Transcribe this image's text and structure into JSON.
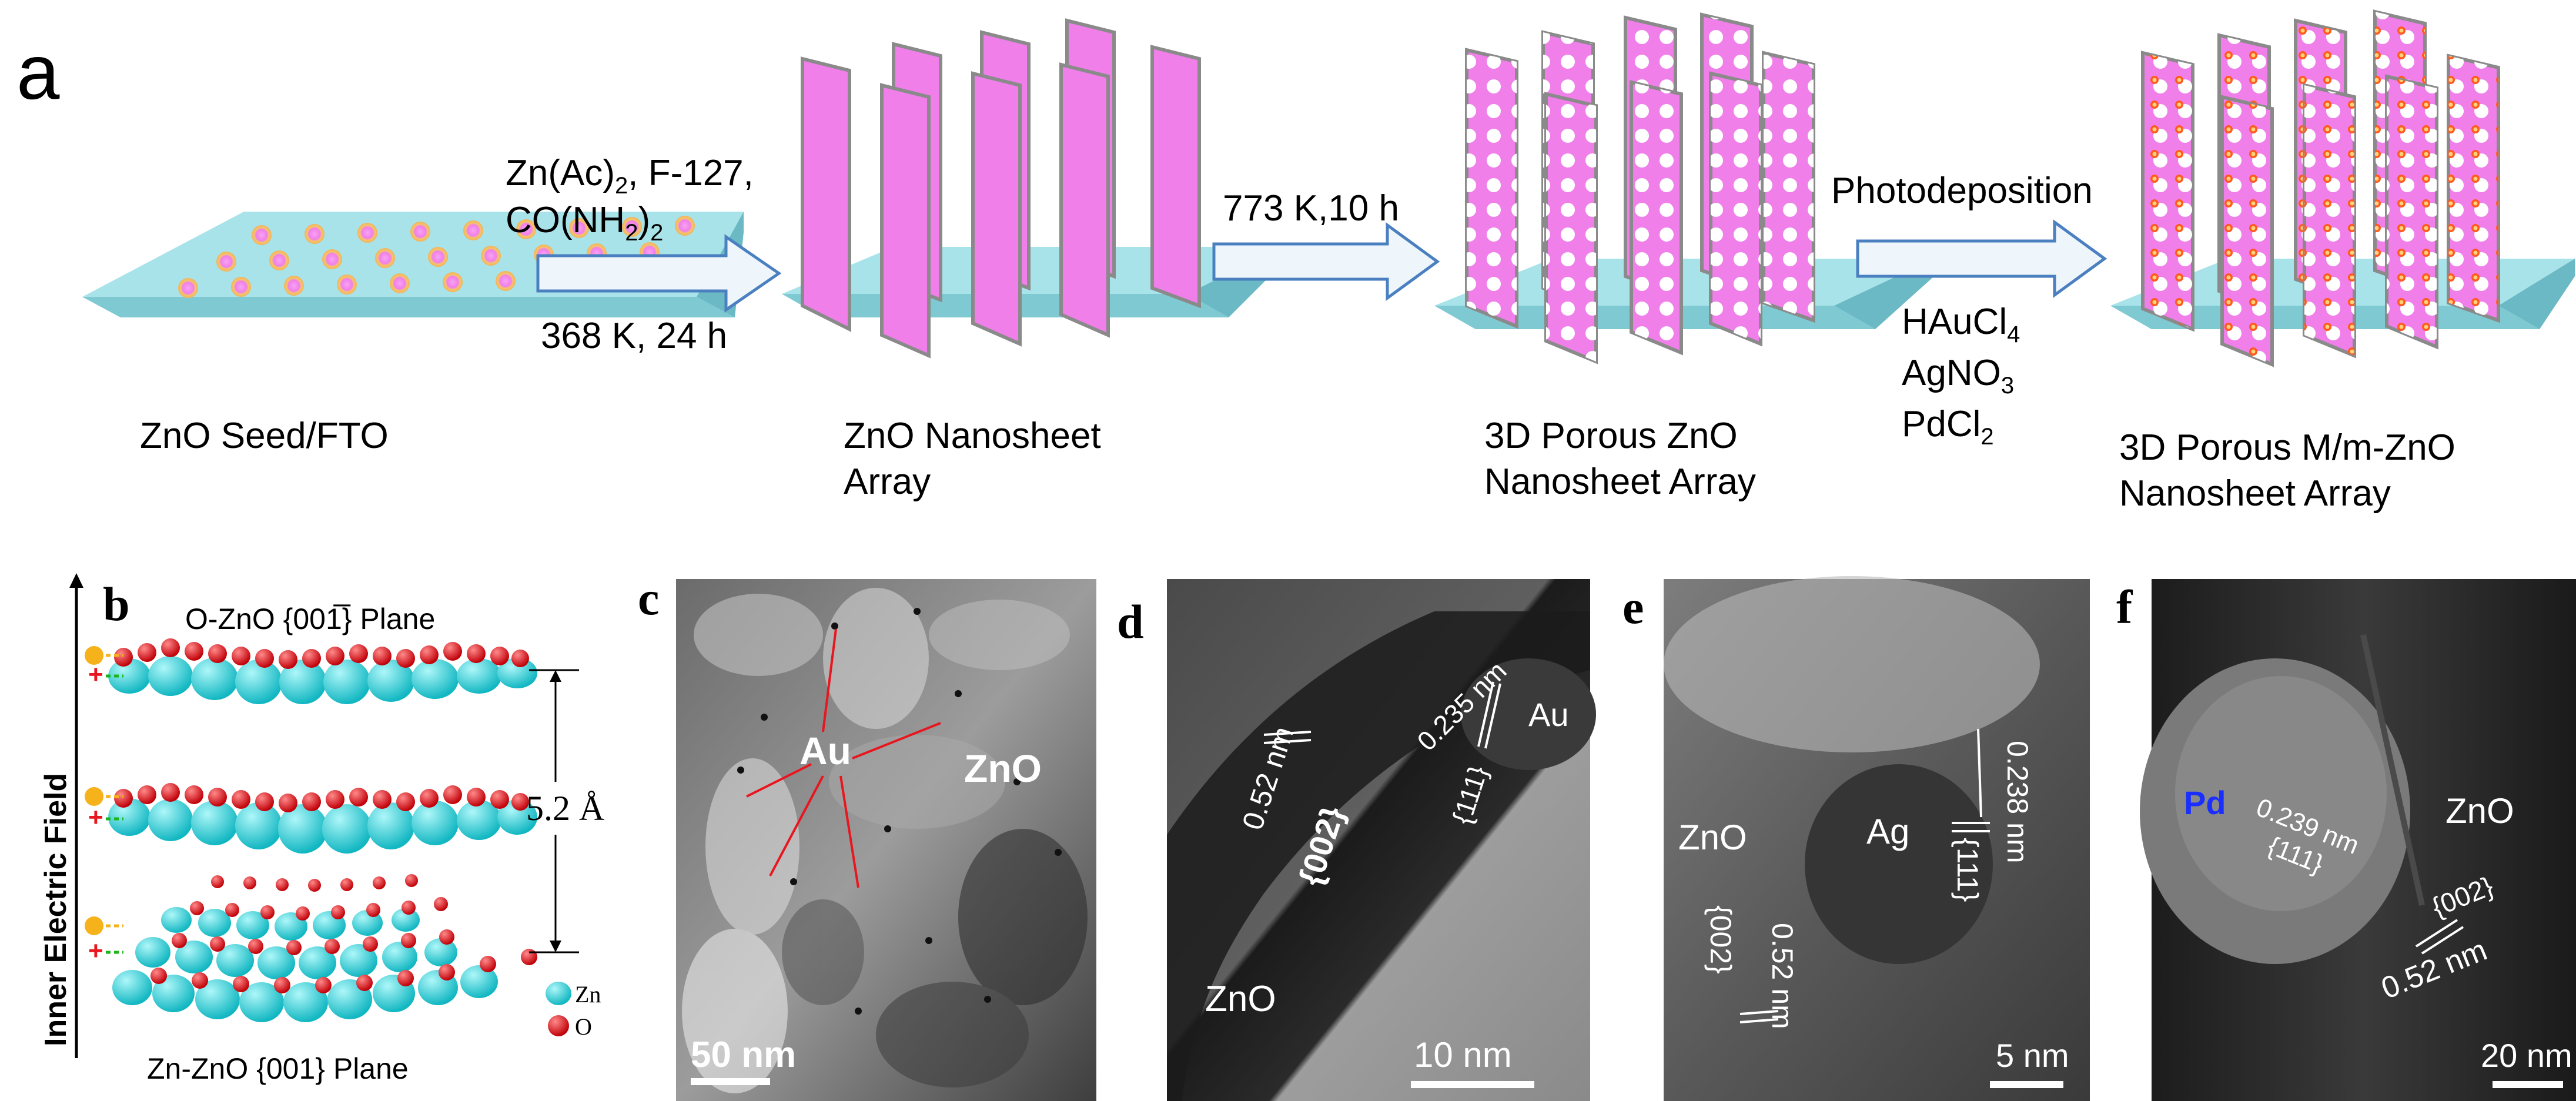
{
  "panel_a": {
    "letter": "a",
    "steps": [
      {
        "caption_1": "ZnO Seed/FTO",
        "caption_2": ""
      },
      {
        "caption_1": "ZnO Nanosheet",
        "caption_2": "Array"
      },
      {
        "caption_1": "3D Porous ZnO",
        "caption_2": "Nanosheet Array"
      },
      {
        "caption_1": "3D Porous M/m-ZnO",
        "caption_2": "Nanosheet Array"
      }
    ],
    "arrow_1": {
      "line_1": "Zn(Ac)",
      "sub_1": "2",
      "line_1b": ", F-127,",
      "line_2": "CO(NH",
      "sub_2": "2",
      "line_2b": ")",
      "sub_2b": "2",
      "below": "368 K, 24 h"
    },
    "arrow_2": {
      "above": "773 K,10 h"
    },
    "arrow_3": {
      "above": "Photodeposition",
      "reagent_1": "HAuCl",
      "reagent_1_sub": "4",
      "reagent_2": "AgNO",
      "reagent_2_sub": "3",
      "reagent_3": "PdCl",
      "reagent_3_sub": "2"
    }
  },
  "panel_b": {
    "letter": "b",
    "top_label": "O-ZnO {001̅} Plane",
    "bottom_label": "Zn-ZnO {001} Plane",
    "axis_label": "Inner Electric Field",
    "spacing": "5.2 Å",
    "legend_zn": "Zn",
    "legend_o": "O",
    "minus": "−",
    "plus": "+"
  },
  "panel_c": {
    "letter": "c",
    "label_au": "Au",
    "label_zno": "ZnO",
    "scale": "50 nm"
  },
  "panel_d": {
    "letter": "d",
    "d_spacing_1": "0.52 nm",
    "plane_1": "{002}",
    "d_spacing_2": "0.235 nm",
    "plane_2": "{111}",
    "label_au": "Au",
    "label_zno": "ZnO",
    "scale": "10 nm"
  },
  "panel_e": {
    "letter": "e",
    "label_zno": "ZnO",
    "label_ag": "Ag",
    "d_spacing_1": "0.238 nm",
    "plane_1": "{111}",
    "plane_2": "{002}",
    "d_spacing_2": "0.52 nm",
    "scale": "5 nm"
  },
  "panel_f": {
    "letter": "f",
    "label_pd": "Pd",
    "d_spacing_1": "0.239 nm",
    "plane_1": "{111}",
    "label_zno": "ZnO",
    "plane_2": "{002}",
    "d_spacing_2": "0.52 nm",
    "scale": "20 nm"
  },
  "colors": {
    "substrate_top": "#a9e3ea",
    "substrate_side": "#7fc9d3",
    "sheet": "#f07fea",
    "sheet_edge": "#8a8a8a",
    "arrow_fill": "#eef6fb",
    "arrow_stroke": "#4a7fc0",
    "seed_ring": "#f2b35a",
    "metal_dot": "#ff5a1f",
    "zn_atom": "#2ad3d8",
    "o_atom": "#e8161e",
    "pd_label": "#1a2fff"
  }
}
